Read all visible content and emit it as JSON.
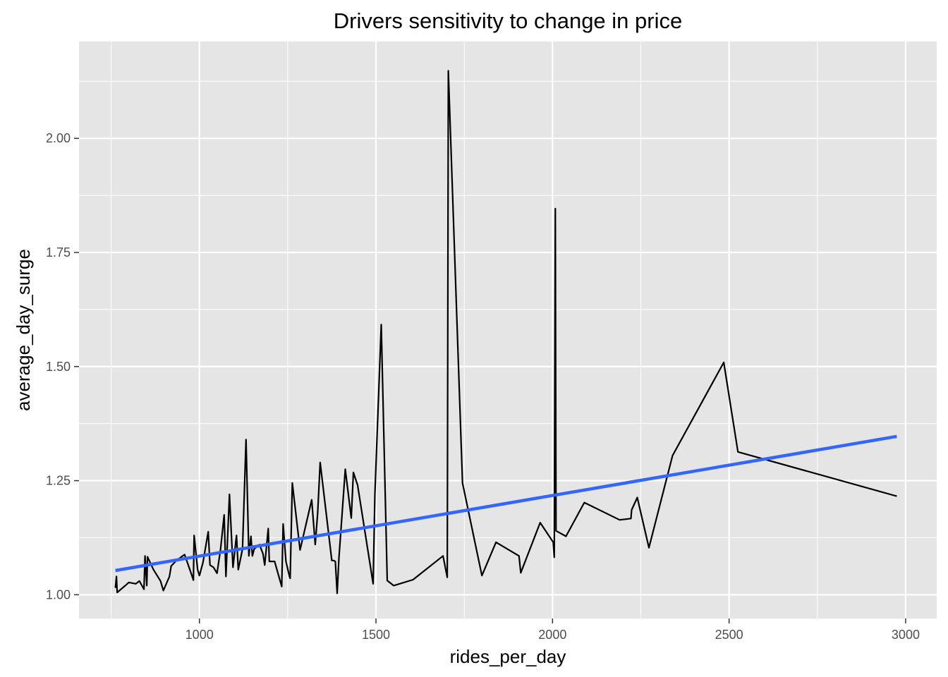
{
  "chart_data": {
    "type": "line",
    "title": "Drivers sensitivity to change in price",
    "xlabel": "rides_per_day",
    "ylabel": "average_day_surge",
    "xlim": [
      659,
      3088
    ],
    "ylim": [
      0.948,
      2.212
    ],
    "x_ticks": [
      {
        "value": 1000,
        "label": "1000"
      },
      {
        "value": 1500,
        "label": "1500"
      },
      {
        "value": 2000,
        "label": "2000"
      },
      {
        "value": 2500,
        "label": "2500"
      },
      {
        "value": 3000,
        "label": "3000"
      }
    ],
    "y_ticks": [
      {
        "value": 1.0,
        "label": "1.00"
      },
      {
        "value": 1.25,
        "label": "1.25"
      },
      {
        "value": 1.5,
        "label": "1.50"
      },
      {
        "value": 1.75,
        "label": "1.75"
      },
      {
        "value": 2.0,
        "label": "2.00"
      }
    ],
    "grid": true,
    "background": "#e5e5e5",
    "series": [
      {
        "type": "line",
        "color": "#000000",
        "points": [
          [
            762,
            1.015
          ],
          [
            765,
            1.04
          ],
          [
            767,
            1.005
          ],
          [
            790,
            1.02
          ],
          [
            800,
            1.027
          ],
          [
            820,
            1.024
          ],
          [
            830,
            1.03
          ],
          [
            843,
            1.012
          ],
          [
            846,
            1.085
          ],
          [
            851,
            1.02
          ],
          [
            853,
            1.083
          ],
          [
            870,
            1.055
          ],
          [
            890,
            1.03
          ],
          [
            898,
            1.009
          ],
          [
            915,
            1.04
          ],
          [
            920,
            1.063
          ],
          [
            935,
            1.075
          ],
          [
            958,
            1.088
          ],
          [
            977,
            1.046
          ],
          [
            983,
            1.032
          ],
          [
            985,
            1.13
          ],
          [
            995,
            1.055
          ],
          [
            1000,
            1.042
          ],
          [
            1010,
            1.07
          ],
          [
            1025,
            1.138
          ],
          [
            1030,
            1.065
          ],
          [
            1040,
            1.06
          ],
          [
            1050,
            1.047
          ],
          [
            1060,
            1.1
          ],
          [
            1070,
            1.175
          ],
          [
            1075,
            1.04
          ],
          [
            1085,
            1.22
          ],
          [
            1095,
            1.06
          ],
          [
            1105,
            1.13
          ],
          [
            1110,
            1.055
          ],
          [
            1122,
            1.1
          ],
          [
            1132,
            1.34
          ],
          [
            1140,
            1.085
          ],
          [
            1146,
            1.128
          ],
          [
            1150,
            1.085
          ],
          [
            1155,
            1.1
          ],
          [
            1170,
            1.11
          ],
          [
            1180,
            1.09
          ],
          [
            1185,
            1.065
          ],
          [
            1195,
            1.145
          ],
          [
            1198,
            1.073
          ],
          [
            1213,
            1.073
          ],
          [
            1233,
            1.018
          ],
          [
            1237,
            1.155
          ],
          [
            1245,
            1.073
          ],
          [
            1255,
            1.04
          ],
          [
            1257,
            1.036
          ],
          [
            1263,
            1.245
          ],
          [
            1285,
            1.098
          ],
          [
            1318,
            1.208
          ],
          [
            1328,
            1.11
          ],
          [
            1335,
            1.18
          ],
          [
            1342,
            1.29
          ],
          [
            1375,
            1.075
          ],
          [
            1380,
            1.075
          ],
          [
            1385,
            1.073
          ],
          [
            1390,
            1.003
          ],
          [
            1395,
            1.08
          ],
          [
            1413,
            1.275
          ],
          [
            1430,
            1.168
          ],
          [
            1436,
            1.268
          ],
          [
            1448,
            1.24
          ],
          [
            1492,
            1.024
          ],
          [
            1497,
            1.22
          ],
          [
            1515,
            1.592
          ],
          [
            1532,
            1.031
          ],
          [
            1550,
            1.02
          ],
          [
            1605,
            1.033
          ],
          [
            1690,
            1.085
          ],
          [
            1702,
            1.038
          ],
          [
            1705,
            2.148
          ],
          [
            1745,
            1.245
          ],
          [
            1800,
            1.042
          ],
          [
            1840,
            1.115
          ],
          [
            1905,
            1.085
          ],
          [
            1910,
            1.048
          ],
          [
            1965,
            1.158
          ],
          [
            2002,
            1.115
          ],
          [
            2005,
            1.082
          ],
          [
            2008,
            1.846
          ],
          [
            2010,
            1.14
          ],
          [
            2038,
            1.128
          ],
          [
            2090,
            1.202
          ],
          [
            2190,
            1.164
          ],
          [
            2222,
            1.167
          ],
          [
            2224,
            1.186
          ],
          [
            2240,
            1.213
          ],
          [
            2273,
            1.103
          ],
          [
            2340,
            1.305
          ],
          [
            2485,
            1.509
          ],
          [
            2525,
            1.313
          ],
          [
            2975,
            1.216
          ]
        ]
      },
      {
        "type": "line",
        "color": "#3366ff",
        "points": [
          [
            762,
            1.053
          ],
          [
            2975,
            1.347
          ]
        ]
      }
    ]
  }
}
